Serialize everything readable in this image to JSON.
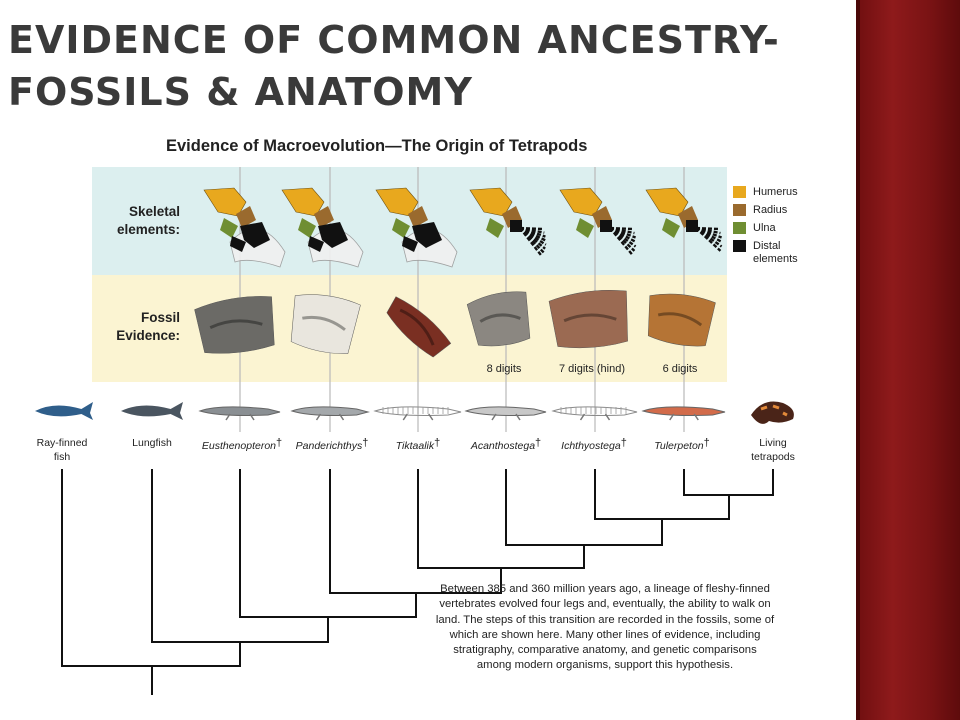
{
  "slide": {
    "title_line1": "EVIDENCE OF COMMON ANCESTRY-",
    "title_line2": "FOSSILS & ANATOMY"
  },
  "figure": {
    "title": "Evidence of Macroevolution—The Origin of Tetrapods",
    "row_skeletal": [
      "Skeletal",
      "elements:"
    ],
    "row_fossil": [
      "Fossil",
      "Evidence:"
    ],
    "legend": [
      {
        "label": "Humerus",
        "color": "#e8a81e"
      },
      {
        "label": "Radius",
        "color": "#9a6a2e"
      },
      {
        "label": "Ulna",
        "color": "#6f8e32"
      },
      {
        "label": "Distal elements",
        "color": "#111111"
      }
    ],
    "digit_labels": [
      "8 digits",
      "7 digits (hind)",
      "6 digits"
    ],
    "taxa": [
      {
        "name": "Ray-finned fish",
        "extinct": false,
        "italic": false
      },
      {
        "name": "Lungfish",
        "extinct": false,
        "italic": false
      },
      {
        "name": "Eusthenopteron",
        "extinct": true,
        "italic": true
      },
      {
        "name": "Panderichthys",
        "extinct": true,
        "italic": true
      },
      {
        "name": "Tiktaalik",
        "extinct": true,
        "italic": true
      },
      {
        "name": "Acanthostega",
        "extinct": true,
        "italic": true
      },
      {
        "name": "Ichthyostega",
        "extinct": true,
        "italic": true
      },
      {
        "name": "Tulerpeton",
        "extinct": true,
        "italic": true
      },
      {
        "name": "Living tetrapods",
        "extinct": false,
        "italic": false
      }
    ],
    "dagger_symbol": "†",
    "caption": "Between 385 and 360 million years ago, a lineage of fleshy-finned vertebrates evolved four legs and, eventually, the ability to walk on land. The steps of this transition are recorded in the fossils, some of which are shown here. Many other lines of evidence, including stratigraphy, comparative anatomy, and genetic comparisons among modern organisms, support this hypothesis.",
    "colors": {
      "skeletal_band": "#dcefef",
      "fossil_band": "#fbf4d2",
      "tree_line": "#111111",
      "slide_accent": "#8e1a1b"
    }
  }
}
